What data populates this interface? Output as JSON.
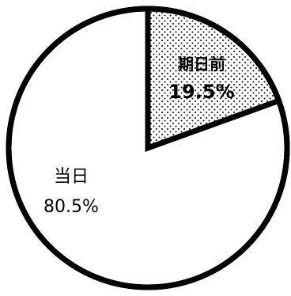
{
  "chart_data": {
    "type": "pie",
    "slices": [
      {
        "label": "期日前",
        "value": 19.5,
        "display": "19.5%",
        "pattern": "dotted"
      },
      {
        "label": "当日",
        "value": 80.5,
        "display": "80.5%",
        "pattern": "white"
      }
    ],
    "colors": {
      "stroke": "#000000",
      "fill_plain": "#ffffff",
      "dot": "#000000"
    }
  }
}
